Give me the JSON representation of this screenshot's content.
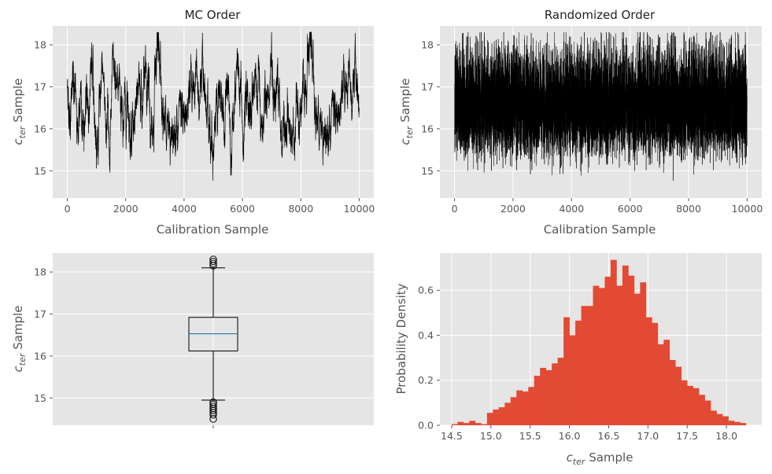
{
  "chart_data": [
    {
      "type": "line",
      "title": "MC Order",
      "xlabel": "Calibration Sample",
      "ylabel_main": "c",
      "ylabel_sub": "ter",
      "ylabel_suffix": " Sample",
      "xlim": [
        -500,
        10500
      ],
      "ylim": [
        14.35,
        18.45
      ],
      "xticks": [
        0,
        2000,
        4000,
        6000,
        8000,
        10000
      ],
      "yticks": [
        15,
        16,
        17,
        18
      ],
      "series": {
        "n": 10000,
        "mean": 16.5,
        "std": 0.6,
        "min": 14.5,
        "max": 18.3,
        "order": "autocorrelated",
        "color": "#000000"
      }
    },
    {
      "type": "line",
      "title": "Randomized Order",
      "xlabel": "Calibration Sample",
      "ylabel_main": "c",
      "ylabel_sub": "ter",
      "ylabel_suffix": " Sample",
      "xlim": [
        -500,
        10500
      ],
      "ylim": [
        14.35,
        18.45
      ],
      "xticks": [
        0,
        2000,
        4000,
        6000,
        8000,
        10000
      ],
      "yticks": [
        15,
        16,
        17,
        18
      ],
      "series": {
        "n": 10000,
        "mean": 16.5,
        "std": 0.6,
        "min": 14.5,
        "max": 18.3,
        "order": "shuffled",
        "color": "#000000"
      }
    },
    {
      "type": "box",
      "title": "",
      "ylabel_main": "c",
      "ylabel_sub": "ter",
      "ylabel_suffix": " Sample",
      "ylim": [
        14.35,
        18.45
      ],
      "yticks": [
        15,
        16,
        17,
        18
      ],
      "box": {
        "whisker_low": 14.95,
        "q1": 16.12,
        "median": 16.53,
        "q3": 16.92,
        "whisker_high": 18.1
      },
      "outliers_low": [
        14.9,
        14.85,
        14.8,
        14.75,
        14.7,
        14.65,
        14.6,
        14.5
      ],
      "outliers_high": [
        18.15,
        18.2,
        18.25,
        18.3
      ],
      "median_color": "#1f77b4"
    },
    {
      "type": "bar",
      "title": "",
      "xlabel_main": "c",
      "xlabel_sub": "ter",
      "xlabel_suffix": " Sample",
      "ylabel": "Probability Density",
      "xlim": [
        14.35,
        18.45
      ],
      "ylim": [
        0,
        0.765
      ],
      "xticks": [
        "14.5",
        "15.0",
        "15.5",
        "16.0",
        "16.5",
        "17.0",
        "17.5",
        "18.0"
      ],
      "yticks": [
        "0.0",
        "0.2",
        "0.4",
        "0.6"
      ],
      "bin_start": 14.5,
      "bin_width": 0.075,
      "values": [
        0.005,
        0.015,
        0.01,
        0.02,
        0.01,
        0.005,
        0.055,
        0.07,
        0.08,
        0.1,
        0.125,
        0.155,
        0.15,
        0.17,
        0.22,
        0.255,
        0.245,
        0.275,
        0.3,
        0.48,
        0.4,
        0.465,
        0.53,
        0.53,
        0.62,
        0.61,
        0.66,
        0.735,
        0.62,
        0.71,
        0.665,
        0.585,
        0.635,
        0.48,
        0.455,
        0.36,
        0.38,
        0.29,
        0.26,
        0.2,
        0.175,
        0.165,
        0.135,
        0.11,
        0.065,
        0.05,
        0.04,
        0.02,
        0.015,
        0.01
      ],
      "color": "#e24a33"
    }
  ]
}
